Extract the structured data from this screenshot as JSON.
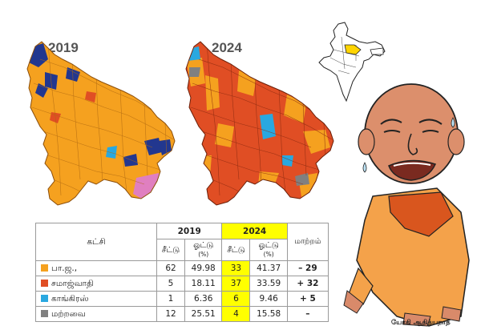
{
  "maps": {
    "year_2019": "2019",
    "year_2024": "2024"
  },
  "colors": {
    "bjp": "#f5a11f",
    "sp": "#e04e24",
    "congress": "#29a8e0",
    "others": "#808080",
    "bsp": "#22378f",
    "apna": "#e07fc0",
    "highlight": "#ffff00"
  },
  "table": {
    "party_header": "கட்சி",
    "year_2019": "2019",
    "year_2024": "2024",
    "seats_label": "சீட்டு",
    "vote_label": "ஓட்டு",
    "vote_unit": "(%)",
    "change_label": "மாற்றம்",
    "rows": [
      {
        "party": "பா.ஜ.,",
        "color": "#f5a11f",
        "seats_2019": "62",
        "vote_2019": "49.98",
        "seats_2024": "33",
        "vote_2024": "41.37",
        "change": "– 29"
      },
      {
        "party": "சமாஜ்வாதி",
        "color": "#e04e24",
        "seats_2019": "5",
        "vote_2019": "18.11",
        "seats_2024": "37",
        "vote_2024": "33.59",
        "change": "+ 32"
      },
      {
        "party": "காங்கிரஸ்",
        "color": "#29a8e0",
        "seats_2019": "1",
        "vote_2019": "6.36",
        "seats_2024": "6",
        "vote_2024": "9.46",
        "change": "+ 5"
      },
      {
        "party": "மற்றவை",
        "color": "#808080",
        "seats_2019": "12",
        "vote_2019": "25.51",
        "seats_2024": "4",
        "vote_2024": "15.58",
        "change": "–"
      }
    ]
  },
  "caption": "யோகி ஆதித்யநாத்"
}
